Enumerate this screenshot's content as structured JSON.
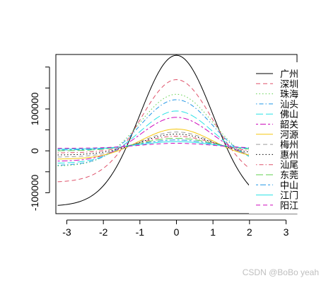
{
  "chart_data": {
    "type": "line",
    "title": "",
    "xlabel": "",
    "ylabel": "",
    "xlim": [
      -3.3,
      3.3
    ],
    "ylim": [
      -150000,
      230000
    ],
    "x_ticks": [
      -3,
      -2,
      -1,
      0,
      1,
      2,
      3
    ],
    "x_tick_labels": [
      "-3",
      "-2",
      "-1",
      "0",
      "1",
      "2",
      "3"
    ],
    "y_ticks": [
      -100000,
      0,
      100000
    ],
    "y_tick_labels": [
      "-100000",
      "0",
      "100000"
    ],
    "y_minor_ticks": [
      -50000,
      50000,
      150000,
      200000
    ],
    "grid": false,
    "legend_position": "right",
    "curve_form": "a * exp(-x^2 / 2) + b",
    "series": [
      {
        "name": "广州",
        "peak": 228000,
        "tail": -132000,
        "color": "#000000",
        "dash": "solid"
      },
      {
        "name": "深圳",
        "peak": 170000,
        "tail": -75000,
        "color": "#DF536B",
        "dash": "dashed"
      },
      {
        "name": "珠海",
        "peak": 135000,
        "tail": -37000,
        "color": "#61D04F",
        "dash": "dotted"
      },
      {
        "name": "汕头",
        "peak": 122000,
        "tail": -35000,
        "color": "#2297E6",
        "dash": "dotdash"
      },
      {
        "name": "佛山",
        "peak": 95000,
        "tail": -30000,
        "color": "#28E2E5",
        "dash": "longdash"
      },
      {
        "name": "韶关",
        "peak": 80000,
        "tail": -25000,
        "color": "#CD0BBC",
        "dash": "twodash"
      },
      {
        "name": "河源",
        "peak": 52000,
        "tail": -20000,
        "color": "#F5C710",
        "dash": "solid"
      },
      {
        "name": "梅州",
        "peak": 45000,
        "tail": -15000,
        "color": "#9E9E9E",
        "dash": "dashed"
      },
      {
        "name": "惠州",
        "peak": 40000,
        "tail": -10000,
        "color": "#000000",
        "dash": "dotted"
      },
      {
        "name": "汕尾",
        "peak": 35000,
        "tail": -5000,
        "color": "#DF536B",
        "dash": "dotdash"
      },
      {
        "name": "东莞",
        "peak": 30000,
        "tail": 0,
        "color": "#61D04F",
        "dash": "longdash"
      },
      {
        "name": "中山",
        "peak": 26000,
        "tail": 2000,
        "color": "#2297E6",
        "dash": "twodash"
      },
      {
        "name": "江门",
        "peak": 22000,
        "tail": 4000,
        "color": "#28E2E5",
        "dash": "solid"
      },
      {
        "name": "阳江",
        "peak": 18000,
        "tail": 6000,
        "color": "#CD0BBC",
        "dash": "dashed"
      }
    ]
  },
  "watermark": "CSDN @BoBo yeah"
}
